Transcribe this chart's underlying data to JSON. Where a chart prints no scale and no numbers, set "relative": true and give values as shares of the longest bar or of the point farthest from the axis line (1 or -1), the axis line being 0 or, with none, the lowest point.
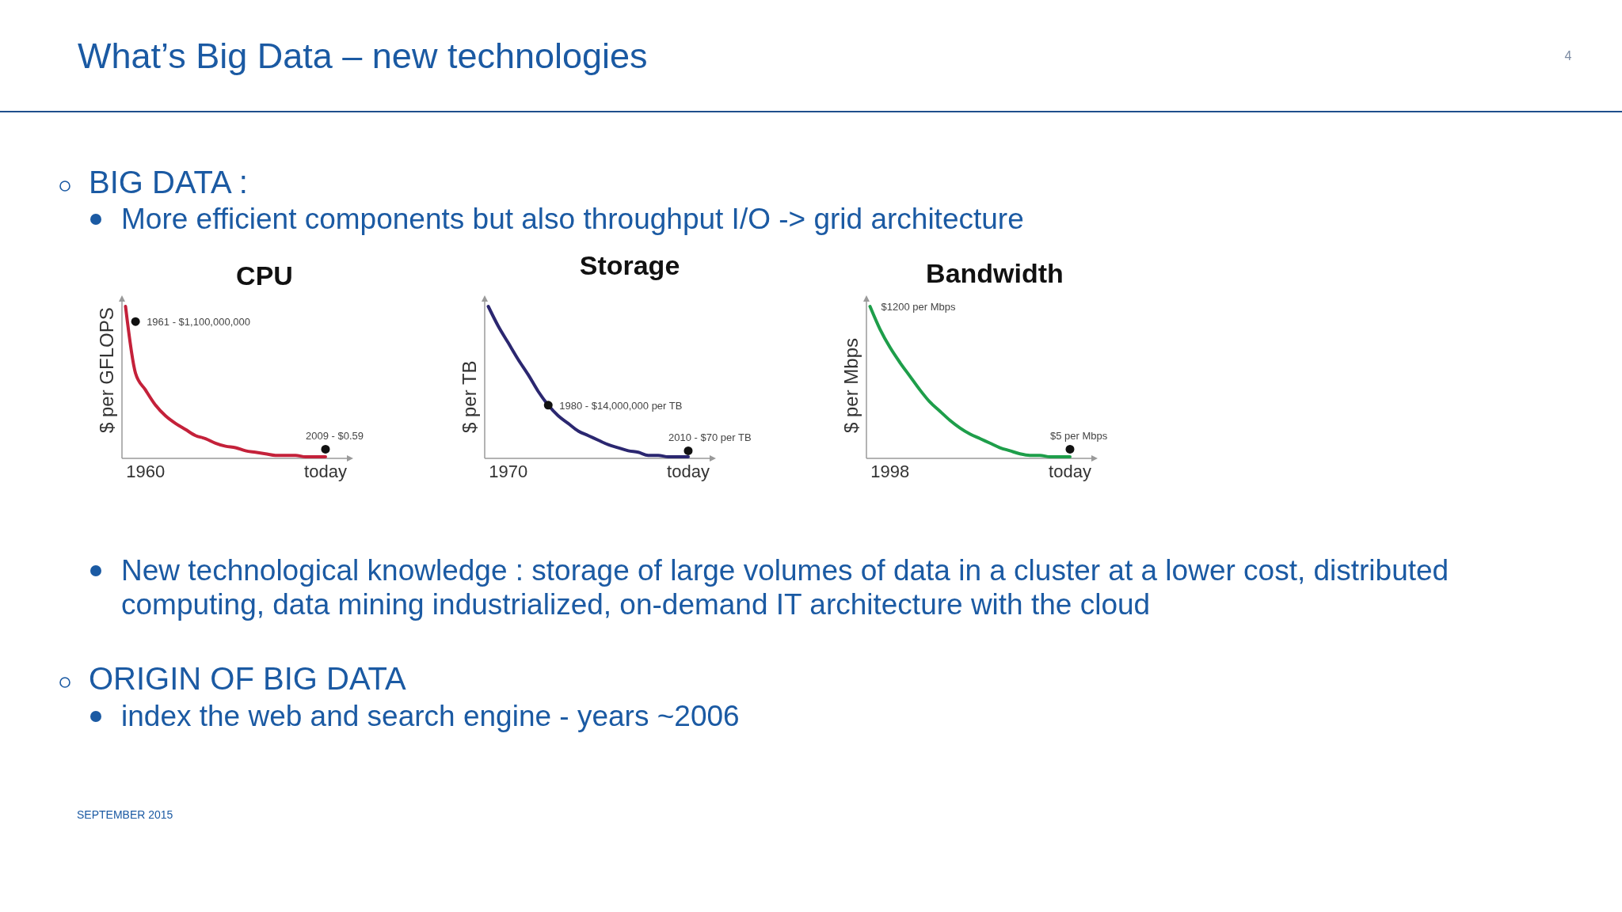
{
  "chart_data": [
    {
      "type": "other",
      "title": "What’s Big Data – new technologies",
      "annotations": [
        "4",
        "BIG DATA :",
        "More efficient components but also throughput I/O -> grid architecture"
      ]
    },
    {
      "type": "line",
      "title": "CPU",
      "ylabel": "$ per GFLOPS",
      "relative": true,
      "categories": [
        null,
        null,
        "1960",
        null,
        null,
        null,
        null,
        null,
        null,
        null,
        null,
        null,
        null,
        null,
        null,
        null,
        null,
        null,
        null,
        null,
        "today"
      ],
      "series": [
        {
          "type": "line",
          "color": "#c4213a",
          "values": [
            1.0,
            0.56,
            0.45,
            0.35,
            0.28,
            0.23,
            0.19,
            0.15,
            0.13,
            0.1,
            0.08,
            0.07,
            0.05,
            0.04,
            0.03,
            0.02,
            0.02,
            0.02,
            0.01,
            0.01,
            0.01
          ]
        },
        {
          "type": "scatter",
          "color": "#111111",
          "values": [
            null,
            0.9,
            null,
            null,
            null,
            null,
            null,
            null,
            null,
            null,
            null,
            null,
            null,
            null,
            null,
            null,
            null,
            null,
            null,
            null,
            0.06
          ]
        }
      ],
      "annotations": [
        "1961 - $1,100,000,000",
        "2009 - $0.59"
      ]
    },
    {
      "type": "line",
      "title": "Storage",
      "ylabel": "$ per TB",
      "relative": true,
      "categories": [
        null,
        null,
        "1970",
        null,
        null,
        null,
        null,
        null,
        null,
        null,
        null,
        null,
        null,
        null,
        null,
        null,
        null,
        null,
        null,
        null,
        "today"
      ],
      "series": [
        {
          "type": "line",
          "color": "#2b2770",
          "values": [
            1.0,
            0.87,
            0.76,
            0.65,
            0.55,
            0.44,
            0.35,
            0.28,
            0.23,
            0.18,
            0.15,
            0.12,
            0.09,
            0.07,
            0.05,
            0.04,
            0.02,
            0.02,
            0.01,
            0.01,
            0.01
          ]
        },
        {
          "type": "scatter",
          "color": "#111111",
          "values": [
            null,
            null,
            null,
            null,
            null,
            null,
            0.35,
            null,
            null,
            null,
            null,
            null,
            null,
            null,
            null,
            null,
            null,
            null,
            null,
            null,
            0.05
          ]
        }
      ],
      "annotations": [
        "1980 - $14,000,000 per TB",
        "2010 - $70 per TB"
      ]
    },
    {
      "type": "line",
      "title": "Bandwidth",
      "ylabel": "$ per Mbps",
      "relative": true,
      "categories": [
        null,
        null,
        "1998",
        null,
        null,
        null,
        null,
        null,
        null,
        null,
        null,
        null,
        null,
        null,
        null,
        null,
        null,
        null,
        null,
        null,
        "today"
      ],
      "series": [
        {
          "type": "line",
          "color": "#1e9e4a",
          "values": [
            1.0,
            0.85,
            0.73,
            0.63,
            0.54,
            0.45,
            0.37,
            0.31,
            0.25,
            0.2,
            0.16,
            0.13,
            0.1,
            0.07,
            0.05,
            0.03,
            0.02,
            0.02,
            0.01,
            0.01,
            0.01
          ]
        },
        {
          "type": "scatter",
          "color": "#111111",
          "values": [
            null,
            null,
            null,
            null,
            null,
            null,
            null,
            null,
            null,
            null,
            null,
            null,
            null,
            null,
            null,
            null,
            null,
            null,
            null,
            null,
            0.06
          ]
        }
      ],
      "annotations": [
        "$1200 per Mbps",
        "$5 per Mbps"
      ]
    },
    {
      "type": "other",
      "annotations": [
        "New technological knowledge : storage of large volumes of data in a cluster at a lower cost, distributed computing, data mining industrialized, on-demand IT architecture with the cloud",
        "ORIGIN OF BIG DATA",
        "index the web and search engine - years ~2006",
        "SEPTEMBER 2015"
      ]
    }
  ]
}
